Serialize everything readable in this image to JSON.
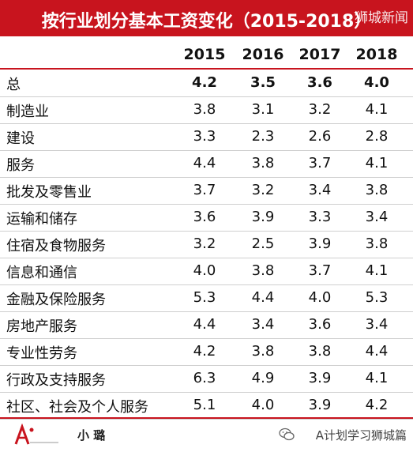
{
  "title": "按行业划分基本工资变化（2015-2018）",
  "watermark_top": "狮城新闻",
  "years": [
    "2015",
    "2016",
    "2017",
    "2018"
  ],
  "rows": [
    {
      "label": "总",
      "values": [
        "4.2",
        "3.5",
        "3.6",
        "4.0"
      ]
    },
    {
      "label": "制造业",
      "values": [
        "3.8",
        "3.1",
        "3.2",
        "4.1"
      ]
    },
    {
      "label": "建设",
      "values": [
        "3.3",
        "2.3",
        "2.6",
        "2.8"
      ]
    },
    {
      "label": "服务",
      "values": [
        "4.4",
        "3.8",
        "3.7",
        "4.1"
      ]
    },
    {
      "label": "批发及零售业",
      "values": [
        "3.7",
        "3.2",
        "3.4",
        "3.8"
      ]
    },
    {
      "label": "运输和储存",
      "values": [
        "3.6",
        "3.9",
        "3.3",
        "3.4"
      ]
    },
    {
      "label": "住宿及食物服务",
      "values": [
        "3.2",
        "2.5",
        "3.9",
        "3.8"
      ]
    },
    {
      "label": "信息和通信",
      "values": [
        "4.0",
        "3.8",
        "3.7",
        "4.1"
      ]
    },
    {
      "label": "金融及保险服务",
      "values": [
        "5.3",
        "4.4",
        "4.0",
        "5.3"
      ]
    },
    {
      "label": "房地产服务",
      "values": [
        "4.4",
        "3.4",
        "3.6",
        "3.4"
      ]
    },
    {
      "label": "专业性劳务",
      "values": [
        "4.2",
        "3.8",
        "3.8",
        "4.4"
      ]
    },
    {
      "label": "行政及支持服务",
      "values": [
        "6.3",
        "4.9",
        "3.9",
        "4.1"
      ]
    },
    {
      "label": "社区、社会及个人服务",
      "values": [
        "5.1",
        "4.0",
        "3.9",
        "4.2"
      ]
    }
  ],
  "footer": {
    "author": "小 璐",
    "source": "A计划学习狮城篇",
    "logo_icon": "a-plan-logo-icon",
    "wechat_icon": "wechat-icon"
  },
  "colors": {
    "accent": "#c8141e",
    "row_divider": "#cfcfcf"
  }
}
